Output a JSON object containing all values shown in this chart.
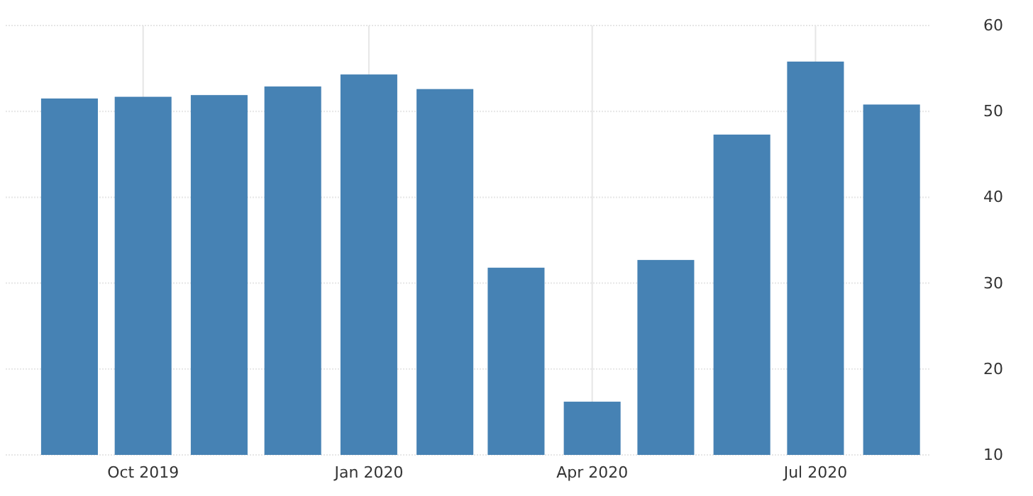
{
  "chart_data": {
    "type": "bar",
    "x": [
      "2019-09-01",
      "2019-10-01",
      "2019-11-01",
      "2019-12-01",
      "2020-01-01",
      "2020-02-01",
      "2020-03-01",
      "2020-04-01",
      "2020-05-01",
      "2020-06-01",
      "2020-07-01",
      "2020-08-01"
    ],
    "values": [
      51.5,
      51.7,
      51.9,
      52.9,
      54.3,
      52.6,
      31.8,
      16.2,
      32.7,
      47.3,
      55.8,
      50.8
    ],
    "color": "#4682b4",
    "xlim": [
      "2019-08-06",
      "2020-08-17"
    ],
    "xticks": [
      {
        "value": "2019-10-01",
        "label": "Oct 2019"
      },
      {
        "value": "2020-01-01",
        "label": "Jan 2020"
      },
      {
        "value": "2020-04-01",
        "label": "Apr 2020"
      },
      {
        "value": "2020-07-01",
        "label": "Jul 2020"
      }
    ],
    "ylim": [
      10,
      60
    ],
    "yticks": [
      10,
      20,
      30,
      40,
      50,
      60
    ],
    "grid": true
  }
}
